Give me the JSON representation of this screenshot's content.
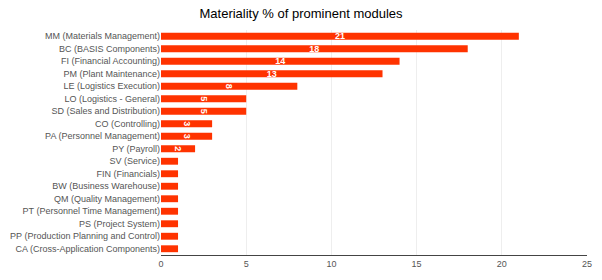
{
  "chart_data": {
    "type": "bar",
    "orientation": "horizontal",
    "title": "Materiality % of prominent modules",
    "categories": [
      "CA (Cross-Application Components)",
      "PP (Production Planning and Control)",
      "PS (Project System)",
      "PT (Personnel Time Management)",
      "QM (Quality Management)",
      "BW (Business Warehouse)",
      "FIN (Financials)",
      "SV (Service)",
      "PY (Payroll)",
      "PA (Personnel Management)",
      "CO (Controlling)",
      "SD (Sales and Distribution)",
      "LO (Logistics - General)",
      "LE (Logistics Execution)",
      "PM (Plant Maintenance)",
      "FI (Financial Accounting)",
      "BC (BASIS Components)",
      "MM (Materials Management)"
    ],
    "values": [
      1,
      1,
      1,
      1,
      1,
      1,
      1,
      1,
      2,
      3,
      3,
      5,
      5,
      8,
      13,
      14,
      18,
      21
    ],
    "value_labels": [
      null,
      null,
      null,
      null,
      null,
      null,
      null,
      null,
      "2",
      "3",
      "3",
      "5",
      "5",
      "8",
      "13",
      "14",
      "18",
      "21"
    ],
    "data_labels": true,
    "color": "#FF3300",
    "xlim": [
      0,
      25
    ],
    "xticks": [
      0,
      5,
      10,
      15,
      20,
      25
    ],
    "grid": true
  }
}
